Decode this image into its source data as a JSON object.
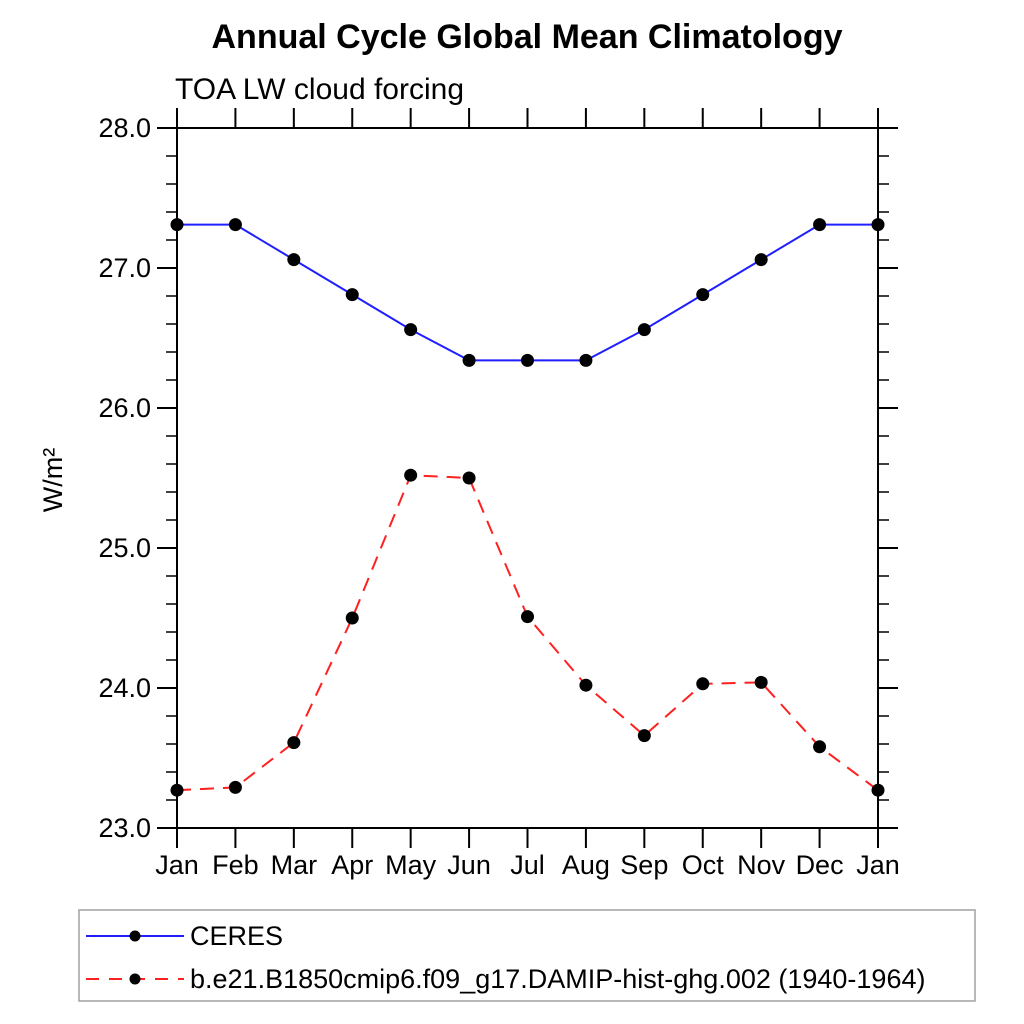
{
  "page": {
    "title": "Annual Cycle Global Mean Climatology",
    "subtitle": "TOA LW cloud forcing"
  },
  "chart_data": {
    "type": "line",
    "title": "Annual Cycle Global Mean Climatology",
    "subtitle": "TOA LW cloud forcing",
    "xlabel": "",
    "ylabel": "W/m²",
    "categories": [
      "Jan",
      "Feb",
      "Mar",
      "Apr",
      "May",
      "Jun",
      "Jul",
      "Aug",
      "Sep",
      "Oct",
      "Nov",
      "Dec",
      "Jan"
    ],
    "series": [
      {
        "name": "CERES",
        "line_style": "solid",
        "line_color": "#1f1fff",
        "marker": "filled-circle",
        "marker_color": "#000000",
        "values": [
          27.31,
          27.31,
          27.06,
          26.81,
          26.56,
          26.34,
          26.34,
          26.34,
          26.56,
          26.81,
          27.06,
          27.31,
          27.31
        ]
      },
      {
        "name": "b.e21.B1850cmip6.f09_g17.DAMIP-hist-ghg.002 (1940-1964)",
        "line_style": "dashed",
        "line_color": "#ff2020",
        "marker": "filled-circle",
        "marker_color": "#000000",
        "values": [
          23.27,
          23.29,
          23.61,
          24.5,
          25.52,
          25.5,
          24.51,
          24.02,
          23.66,
          24.03,
          24.04,
          23.58,
          23.27
        ]
      }
    ],
    "ylim": [
      23.0,
      28.0
    ],
    "yticks": [
      23.0,
      24.0,
      25.0,
      26.0,
      27.0,
      28.0
    ],
    "ytick_labels": [
      "23.0",
      "24.0",
      "25.0",
      "26.0",
      "27.0",
      "28.0"
    ],
    "y_minor_tick_interval": 0.2,
    "grid": false,
    "legend_position": "bottom",
    "axis_color": "#000000",
    "text_color": "#000000"
  }
}
